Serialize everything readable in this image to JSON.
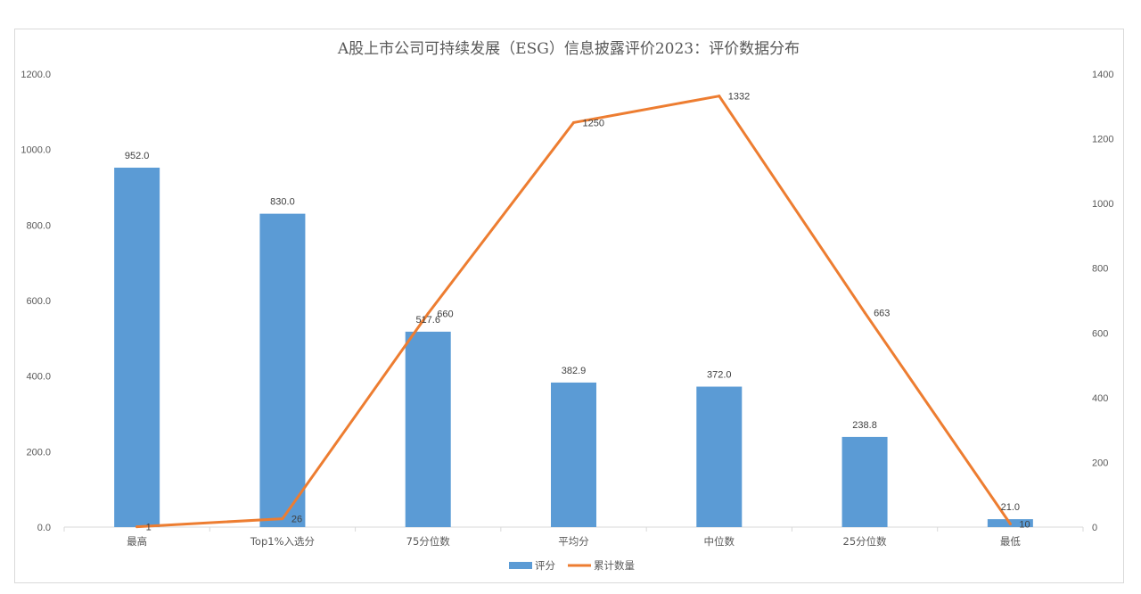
{
  "chart_data": {
    "type": "bar+line",
    "title": "A股上市公司可持续发展（ESG）信息披露评价2023：评价数据分布",
    "categories": [
      "最高",
      "Top1%入选分",
      "75分位数",
      "平均分",
      "中位数",
      "25分位数",
      "最低"
    ],
    "series": [
      {
        "name": "评分",
        "type": "bar",
        "axis": "left",
        "color": "#5B9BD5",
        "values": [
          952.0,
          830.0,
          517.6,
          382.9,
          372.0,
          238.8,
          21.0
        ],
        "labels": [
          "952.0",
          "830.0",
          "517.6",
          "382.9",
          "372.0",
          "238.8",
          "21.0"
        ]
      },
      {
        "name": "累计数量",
        "type": "line",
        "axis": "right",
        "color": "#ED7D31",
        "values": [
          1,
          26,
          660,
          1250,
          1332,
          663,
          10
        ],
        "labels": [
          "1",
          "26",
          "660",
          "1250",
          "1332",
          "663",
          "10"
        ]
      }
    ],
    "y_left": {
      "min": 0,
      "max": 1200,
      "ticks": [
        "0.0",
        "200.0",
        "400.0",
        "600.0",
        "800.0",
        "1000.0",
        "1200.0"
      ]
    },
    "y_right": {
      "min": 0,
      "max": 1400,
      "ticks": [
        "0",
        "200",
        "400",
        "600",
        "800",
        "1000",
        "1200",
        "1400"
      ]
    },
    "grid": false,
    "legend": "bottom-center"
  }
}
